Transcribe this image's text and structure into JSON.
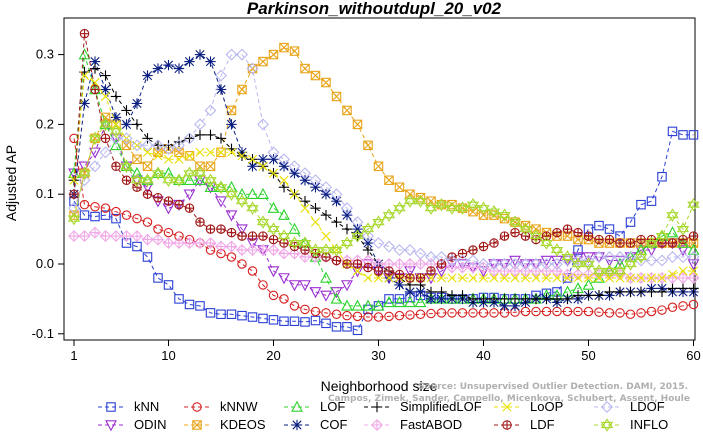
{
  "chart_data": {
    "type": "line",
    "title": "Parkinson_withoutdupl_20_v02",
    "xlabel": "Neighborhood size",
    "ylabel": "Adjusted AP",
    "xlim": [
      0,
      60
    ],
    "ylim": [
      -0.1,
      0.34
    ],
    "xticks": [
      1,
      10,
      20,
      30,
      40,
      50,
      60
    ],
    "yticks": [
      -0.1,
      0.0,
      0.1,
      0.2,
      0.3
    ],
    "ytick_labels": [
      "-0.1",
      "0.0",
      "0.1",
      "0.2",
      "0.3"
    ],
    "legend_position": "bottom",
    "credit": [
      "Source: Unsupervised Outlier Detection. DAMI, 2015.",
      "Campos, Zimek, Sander, Campello, Micenkova, Schubert, Assent, Houle"
    ],
    "series": [
      {
        "name": "kNN",
        "color": "#2a3fd6",
        "marker": "square",
        "values": [
          0.09,
          0.07,
          0.068,
          0.07,
          0.065,
          0.03,
          0.025,
          0.01,
          -0.02,
          -0.03,
          -0.05,
          -0.058,
          -0.06,
          -0.07,
          -0.072,
          -0.072,
          -0.074,
          -0.076,
          -0.078,
          -0.08,
          -0.082,
          -0.082,
          -0.083,
          -0.081,
          -0.085,
          -0.09,
          -0.09,
          -0.095,
          -0.065,
          -0.06,
          -0.05,
          -0.05,
          -0.048,
          -0.045,
          -0.048,
          -0.048,
          -0.05,
          -0.05,
          -0.05,
          -0.048,
          -0.048,
          -0.05,
          -0.05,
          -0.05,
          -0.045,
          -0.042,
          -0.04,
          -0.02,
          0.02,
          0.05,
          0.055,
          0.05,
          0.04,
          0.06,
          0.085,
          0.09,
          0.125,
          0.19,
          0.185,
          0.185
        ]
      },
      {
        "name": "ODIN",
        "color": "#9a2fd1",
        "marker": "triangle-down",
        "values": [
          0.13,
          0.14,
          0.16,
          0.2,
          0.18,
          0.14,
          0.12,
          0.11,
          0.09,
          0.08,
          0.085,
          0.1,
          0.12,
          0.11,
          0.09,
          0.07,
          0.05,
          0.03,
          0.02,
          -0.01,
          -0.02,
          -0.03,
          -0.03,
          -0.04,
          -0.045,
          -0.04,
          -0.03,
          -0.01,
          0.0,
          -0.01,
          -0.02,
          -0.02,
          -0.01,
          -0.02,
          -0.02,
          -0.01,
          0.0,
          0.0,
          -0.005,
          -0.01,
          0.0,
          0.0,
          0.005,
          0.0,
          0.0,
          0.005,
          0.005,
          0.005,
          0.01,
          0.01,
          0.01,
          0.005,
          0.005,
          0.01,
          0.02,
          0.02,
          0.03,
          0.03,
          0.02,
          0.0
        ]
      },
      {
        "name": "kNNW",
        "color": "#d62020",
        "marker": "circle",
        "values": [
          0.18,
          0.085,
          0.082,
          0.08,
          0.075,
          0.07,
          0.065,
          0.06,
          0.05,
          0.045,
          0.04,
          0.035,
          0.03,
          0.02,
          0.015,
          0.01,
          0.0,
          -0.01,
          -0.03,
          -0.045,
          -0.05,
          -0.06,
          -0.065,
          -0.068,
          -0.07,
          -0.072,
          -0.074,
          -0.075,
          -0.076,
          -0.076,
          -0.075,
          -0.074,
          -0.073,
          -0.072,
          -0.071,
          -0.07,
          -0.07,
          -0.07,
          -0.07,
          -0.07,
          -0.07,
          -0.07,
          -0.069,
          -0.068,
          -0.068,
          -0.068,
          -0.068,
          -0.068,
          -0.068,
          -0.068,
          -0.069,
          -0.07,
          -0.07,
          -0.072,
          -0.07,
          -0.068,
          -0.066,
          -0.062,
          -0.06,
          -0.058
        ]
      },
      {
        "name": "KDEOS",
        "color": "#e8a417",
        "marker": "square-x",
        "values": [
          0.07,
          0.13,
          0.18,
          0.21,
          0.2,
          0.17,
          0.15,
          0.14,
          0.16,
          0.165,
          0.16,
          0.155,
          0.14,
          0.14,
          0.16,
          0.22,
          0.25,
          0.28,
          0.29,
          0.3,
          0.31,
          0.305,
          0.28,
          0.27,
          0.26,
          0.24,
          0.22,
          0.2,
          0.17,
          0.14,
          0.12,
          0.11,
          0.1,
          0.095,
          0.09,
          0.085,
          0.085,
          0.08,
          0.075,
          0.07,
          0.07,
          0.065,
          0.06,
          0.055,
          0.05,
          0.045,
          0.04,
          0.04,
          0.035,
          0.035,
          0.03,
          0.03,
          0.03,
          0.03,
          0.03,
          0.03,
          0.03,
          0.03,
          0.03,
          0.03
        ]
      },
      {
        "name": "LOF",
        "color": "#2bd32b",
        "marker": "triangle-up",
        "values": [
          0.13,
          0.3,
          0.25,
          0.2,
          0.17,
          0.14,
          0.13,
          0.12,
          0.13,
          0.13,
          0.12,
          0.12,
          0.12,
          0.11,
          0.11,
          0.11,
          0.1,
          0.1,
          0.1,
          0.08,
          0.07,
          0.05,
          0.03,
          0.01,
          -0.02,
          -0.05,
          -0.06,
          -0.06,
          -0.06,
          -0.06,
          -0.055,
          -0.055,
          -0.055,
          -0.055,
          -0.05,
          -0.05,
          -0.05,
          -0.05,
          -0.05,
          -0.05,
          -0.05,
          -0.05,
          -0.05,
          -0.05,
          -0.05,
          -0.045,
          -0.045,
          -0.04,
          -0.035,
          -0.03,
          -0.02,
          -0.01,
          0.0,
          0.01,
          0.02,
          0.03,
          0.04,
          0.045,
          0.03,
          0.02
        ]
      },
      {
        "name": "COF",
        "color": "#0a1e82",
        "marker": "star",
        "values": [
          0.1,
          0.23,
          0.29,
          0.25,
          0.21,
          0.2,
          0.23,
          0.27,
          0.28,
          0.285,
          0.28,
          0.29,
          0.3,
          0.29,
          0.25,
          0.2,
          0.16,
          0.14,
          0.15,
          0.15,
          0.14,
          0.13,
          0.12,
          0.11,
          0.1,
          0.09,
          0.07,
          0.05,
          0.03,
          0.0,
          -0.02,
          -0.03,
          -0.04,
          -0.04,
          -0.05,
          -0.05,
          -0.05,
          -0.05,
          -0.055,
          -0.055,
          -0.055,
          -0.06,
          -0.06,
          -0.055,
          -0.05,
          -0.05,
          -0.055,
          -0.05,
          -0.05,
          -0.045,
          -0.045,
          -0.045,
          -0.04,
          -0.04,
          -0.04,
          -0.035,
          -0.035,
          -0.04,
          -0.04,
          -0.04
        ]
      },
      {
        "name": "SimplifiedLOF",
        "color": "#000000",
        "marker": "plus",
        "values": [
          0.12,
          0.275,
          0.28,
          0.27,
          0.24,
          0.22,
          0.2,
          0.18,
          0.17,
          0.17,
          0.175,
          0.18,
          0.185,
          0.185,
          0.18,
          0.165,
          0.155,
          0.15,
          0.14,
          0.13,
          0.11,
          0.1,
          0.09,
          0.08,
          0.07,
          0.06,
          0.05,
          0.04,
          0.02,
          0.0,
          -0.01,
          -0.02,
          -0.03,
          -0.03,
          -0.04,
          -0.04,
          -0.045,
          -0.045,
          -0.05,
          -0.05,
          -0.05,
          -0.05,
          -0.05,
          -0.05,
          -0.05,
          -0.05,
          -0.05,
          -0.05,
          -0.045,
          -0.045,
          -0.045,
          -0.04,
          -0.04,
          -0.04,
          -0.04,
          -0.04,
          -0.04,
          -0.035,
          -0.035,
          -0.035
        ]
      },
      {
        "name": "FastABOD",
        "color": "#f0a8e8",
        "marker": "diamond-plus",
        "values": [
          0.04,
          0.04,
          0.045,
          0.04,
          0.04,
          0.04,
          0.04,
          0.035,
          0.035,
          0.03,
          0.03,
          0.03,
          0.03,
          0.03,
          0.025,
          0.025,
          0.02,
          0.02,
          0.02,
          0.02,
          0.015,
          0.015,
          0.01,
          0.01,
          0.01,
          0.005,
          0.005,
          0.005,
          0.005,
          0.0,
          0.0,
          0.0,
          0.0,
          0.0,
          0.0,
          0.0,
          -0.005,
          -0.005,
          -0.005,
          -0.005,
          -0.01,
          -0.01,
          -0.01,
          -0.01,
          -0.01,
          -0.01,
          -0.01,
          -0.015,
          -0.015,
          -0.015,
          -0.015,
          -0.015,
          -0.015,
          -0.02,
          -0.02,
          -0.02,
          -0.02,
          -0.02,
          -0.02,
          -0.02
        ]
      },
      {
        "name": "LoOP",
        "color": "#e8e000",
        "marker": "x",
        "values": [
          0.12,
          0.27,
          0.26,
          0.24,
          0.2,
          0.18,
          0.17,
          0.16,
          0.155,
          0.15,
          0.15,
          0.155,
          0.16,
          0.16,
          0.16,
          0.16,
          0.155,
          0.15,
          0.14,
          0.13,
          0.12,
          0.1,
          0.08,
          0.06,
          0.04,
          0.02,
          0.0,
          -0.01,
          -0.02,
          -0.02,
          -0.02,
          -0.02,
          -0.02,
          -0.02,
          -0.02,
          -0.02,
          -0.02,
          -0.02,
          -0.02,
          -0.02,
          -0.02,
          -0.02,
          -0.02,
          -0.02,
          -0.02,
          -0.02,
          -0.02,
          -0.02,
          -0.02,
          -0.02,
          -0.02,
          -0.02,
          -0.02,
          -0.02,
          -0.02,
          -0.02,
          -0.02,
          -0.015,
          -0.01,
          -0.01
        ]
      },
      {
        "name": "LDF",
        "color": "#a01818",
        "marker": "circle-plus",
        "values": [
          0.1,
          0.33,
          0.25,
          0.18,
          0.14,
          0.12,
          0.11,
          0.1,
          0.095,
          0.09,
          0.085,
          0.08,
          0.06,
          0.05,
          0.05,
          0.045,
          0.04,
          0.04,
          0.04,
          0.035,
          0.03,
          0.025,
          0.02,
          0.015,
          0.01,
          0.005,
          0.0,
          0.0,
          -0.005,
          -0.01,
          -0.01,
          -0.015,
          -0.02,
          -0.02,
          -0.01,
          0.0,
          0.01,
          0.015,
          0.02,
          0.025,
          0.03,
          0.04,
          0.045,
          0.04,
          0.035,
          0.04,
          0.045,
          0.05,
          0.045,
          0.04,
          0.035,
          0.035,
          0.03,
          0.03,
          0.035,
          0.035,
          0.03,
          0.03,
          0.035,
          0.04
        ]
      },
      {
        "name": "LDOF",
        "color": "#b8b8f0",
        "marker": "diamond",
        "values": [
          0.08,
          0.12,
          0.14,
          0.16,
          0.18,
          0.18,
          0.17,
          0.17,
          0.17,
          0.165,
          0.17,
          0.18,
          0.2,
          0.22,
          0.27,
          0.3,
          0.3,
          0.28,
          0.2,
          0.16,
          0.15,
          0.14,
          0.13,
          0.12,
          0.11,
          0.1,
          0.08,
          0.06,
          0.04,
          0.03,
          0.025,
          0.02,
          0.02,
          0.015,
          0.01,
          0.01,
          0.005,
          0.005,
          0.005,
          0.0,
          0.0,
          0.0,
          0.0,
          0.0,
          0.0,
          0.0,
          0.0,
          0.005,
          0.005,
          0.005,
          0.01,
          0.01,
          0.01,
          0.01,
          0.005,
          0.005,
          0.005,
          0.01,
          0.01,
          0.01
        ]
      },
      {
        "name": "INFLO",
        "color": "#a8d830",
        "marker": "hexagram",
        "values": [
          0.065,
          0.13,
          0.18,
          0.2,
          0.19,
          0.14,
          0.12,
          0.12,
          0.13,
          0.12,
          0.12,
          0.13,
          0.13,
          0.12,
          0.11,
          0.1,
          0.09,
          0.08,
          0.06,
          0.05,
          0.04,
          0.03,
          0.03,
          0.02,
          0.02,
          0.02,
          0.03,
          0.04,
          0.05,
          0.06,
          0.07,
          0.08,
          0.09,
          0.09,
          0.08,
          0.085,
          0.08,
          0.08,
          0.085,
          0.08,
          0.075,
          0.07,
          0.06,
          0.05,
          0.04,
          0.03,
          0.02,
          0.01,
          0.0,
          0.0,
          -0.01,
          -0.01,
          -0.01,
          0.0,
          0.01,
          0.03,
          0.04,
          0.07,
          0.05,
          0.085
        ]
      }
    ]
  }
}
